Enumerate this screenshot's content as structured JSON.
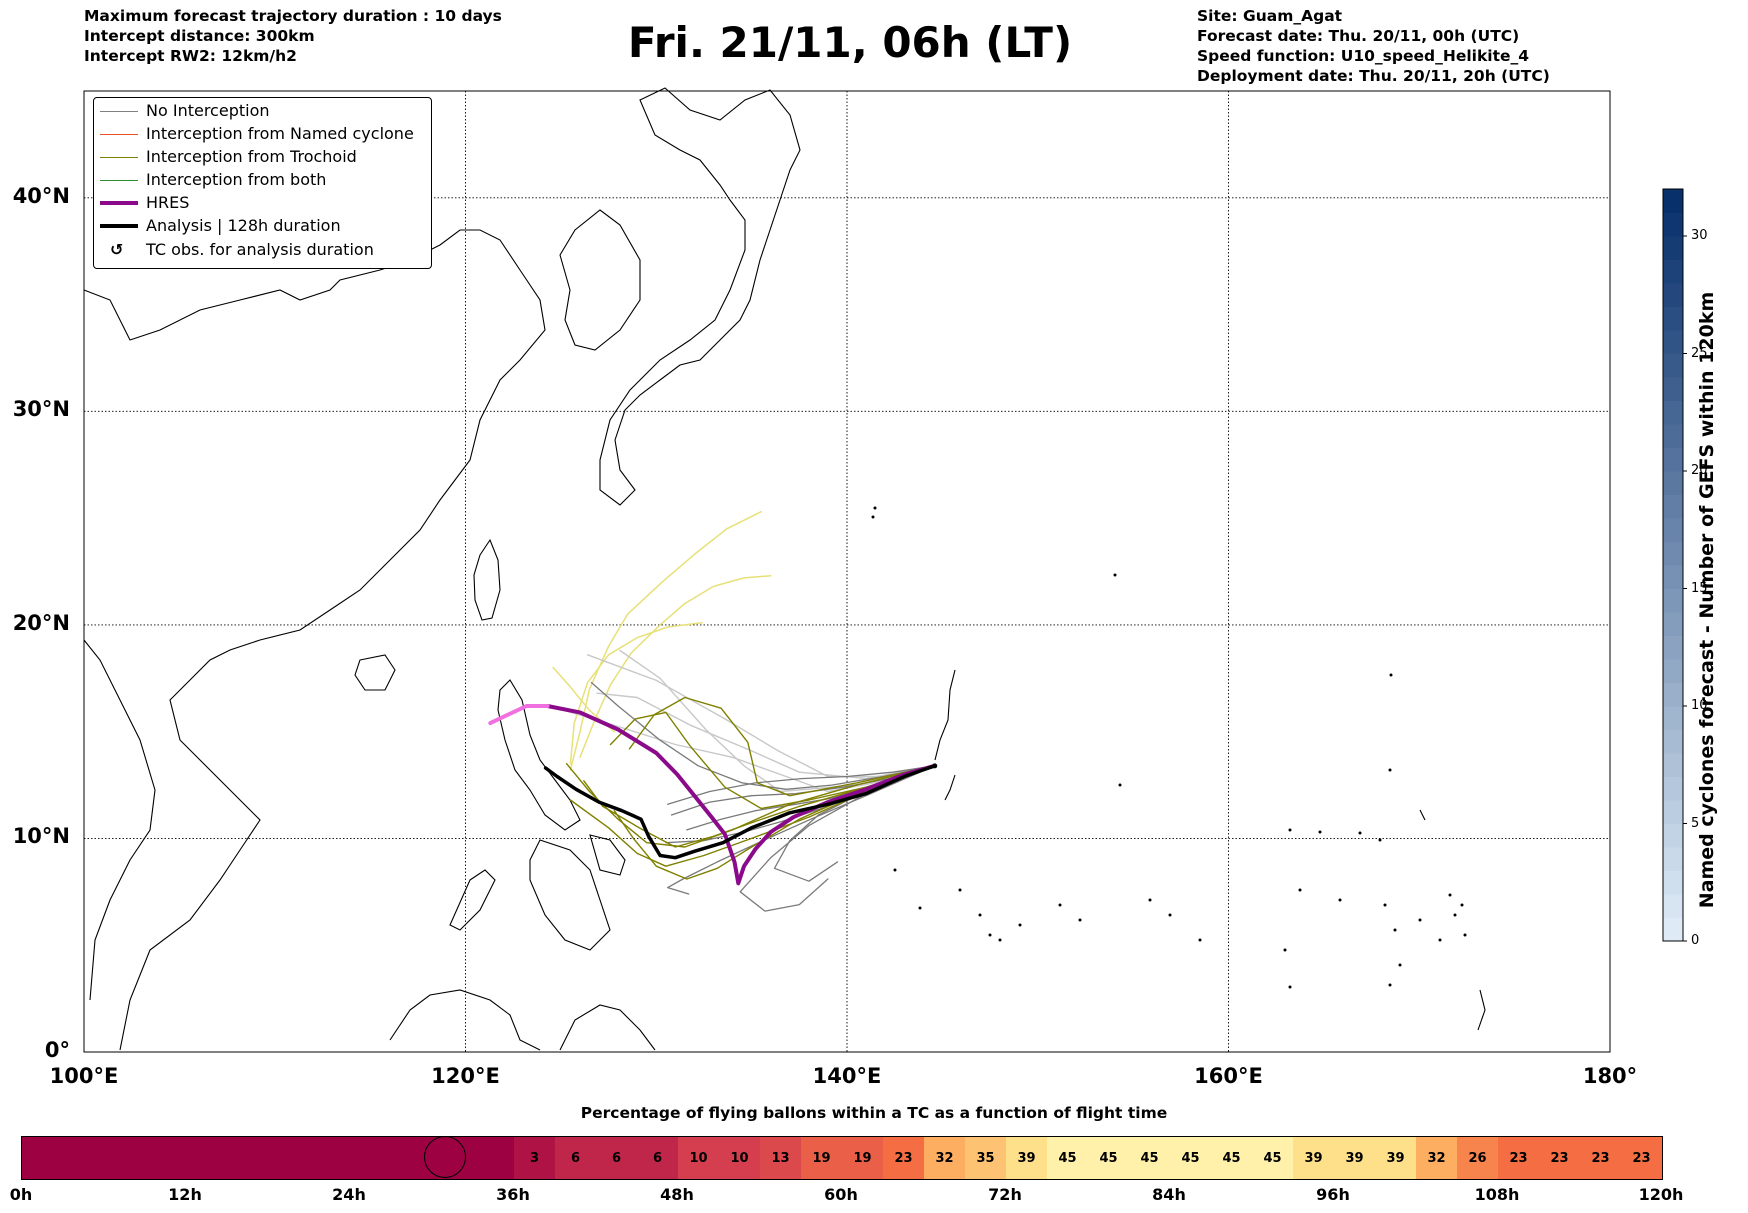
{
  "header_left": [
    "Maximum forecast trajectory duration : 10 days",
    "Intercept distance: 300km",
    "Intercept RW2: 12km/h2"
  ],
  "title": "Fri. 21/11, 06h (LT)",
  "header_right": [
    "Site: Guam_Agat",
    "Forecast date: Thu. 20/11, 00h (UTC)",
    "Speed function: U10_speed_Helikite_4",
    "Deployment date: Thu. 20/11, 20h (UTC)"
  ],
  "legend": [
    {
      "label": "No Interception",
      "color": "#808080",
      "kind": "thin"
    },
    {
      "label": "Interception from Named cyclone",
      "color": "#e8502a",
      "kind": "thin"
    },
    {
      "label": "Interception from Trochoid",
      "color": "#808000",
      "kind": "thin"
    },
    {
      "label": "Interception from both",
      "color": "#2e8b2e",
      "kind": "thin"
    },
    {
      "label": "HRES",
      "color": "#8b0a8b",
      "kind": "thick"
    },
    {
      "label": "Analysis | 128h duration",
      "color": "#000000",
      "kind": "thick"
    },
    {
      "label": "TC obs. for analysis duration",
      "color": "#000000",
      "kind": "symbol",
      "symbol": "↺"
    }
  ],
  "map": {
    "lon_range": [
      100,
      180
    ],
    "lat_range": [
      0,
      45
    ],
    "lon_ticks": [
      {
        "value": 100,
        "label": "100°E"
      },
      {
        "value": 120,
        "label": "120°E"
      },
      {
        "value": 140,
        "label": "140°E"
      },
      {
        "value": 160,
        "label": "160°E"
      },
      {
        "value": 180,
        "label": "180°"
      }
    ],
    "lat_ticks": [
      {
        "value": 0,
        "label": "0°"
      },
      {
        "value": 10,
        "label": "10°N"
      },
      {
        "value": 20,
        "label": "20°N"
      },
      {
        "value": 30,
        "label": "30°N"
      },
      {
        "value": 40,
        "label": "40°N"
      }
    ],
    "launch_site": {
      "lon": 144.6,
      "lat": 13.4
    },
    "analysis_track": [
      [
        144.6,
        13.4
      ],
      [
        143,
        12.9
      ],
      [
        141,
        12.1
      ],
      [
        139,
        11.6
      ],
      [
        137,
        11.2
      ],
      [
        135,
        10.5
      ],
      [
        133.5,
        9.8
      ],
      [
        132,
        9.4
      ],
      [
        131,
        9.1
      ],
      [
        130.2,
        9.2
      ],
      [
        129.6,
        10.1
      ],
      [
        129.2,
        10.9
      ],
      [
        128.2,
        11.3
      ],
      [
        127,
        11.7
      ],
      [
        125.8,
        12.3
      ],
      [
        124.8,
        12.9
      ],
      [
        124.2,
        13.3
      ]
    ],
    "hres_track": [
      [
        144.6,
        13.4
      ],
      [
        143,
        13
      ],
      [
        141,
        12.3
      ],
      [
        139,
        11.7
      ],
      [
        137.2,
        11
      ],
      [
        136,
        10.3
      ],
      [
        135.2,
        9.5
      ],
      [
        134.6,
        8.7
      ],
      [
        134.3,
        7.9
      ],
      [
        134.1,
        8.9
      ],
      [
        133.6,
        10.2
      ],
      [
        132.9,
        11
      ],
      [
        132,
        12
      ],
      [
        131.1,
        13
      ],
      [
        130,
        14
      ],
      [
        128,
        15.1
      ],
      [
        126,
        15.9
      ],
      [
        124.3,
        16.2
      ],
      [
        123.2,
        16.2
      ],
      [
        122,
        15.7
      ],
      [
        121.3,
        15.4
      ]
    ],
    "hres_recent_from_lon": 124.8,
    "trochoid_tracks": [
      [
        [
          144.6,
          13.4
        ],
        [
          141,
          12.2
        ],
        [
          138,
          11
        ],
        [
          135,
          10
        ],
        [
          132.5,
          9.2
        ],
        [
          130.5,
          8.7
        ],
        [
          129,
          9.3
        ],
        [
          127.5,
          10.5
        ],
        [
          125.5,
          11.8
        ]
      ],
      [
        [
          144.6,
          13.4
        ],
        [
          140.5,
          12.5
        ],
        [
          137,
          11.6
        ],
        [
          134,
          10.4
        ],
        [
          131.5,
          9.6
        ],
        [
          129.5,
          9.8
        ],
        [
          128,
          10.9
        ],
        [
          126.5,
          12.2
        ],
        [
          125.3,
          13.5
        ]
      ],
      [
        [
          144.6,
          13.4
        ],
        [
          141,
          12.3
        ],
        [
          137.5,
          10.9
        ],
        [
          135,
          9.6
        ],
        [
          133.2,
          8.6
        ],
        [
          131.6,
          8.1
        ],
        [
          130,
          8.7
        ],
        [
          128.8,
          10
        ],
        [
          127.8,
          11.3
        ]
      ],
      [
        [
          144.6,
          13.4
        ],
        [
          140.5,
          12.6
        ],
        [
          137,
          12
        ],
        [
          135.3,
          12.6
        ],
        [
          134.8,
          14.5
        ],
        [
          133.4,
          16.1
        ],
        [
          131.5,
          16.6
        ],
        [
          129.9,
          15.8
        ],
        [
          128.6,
          14.2
        ]
      ],
      [
        [
          144.6,
          13.4
        ],
        [
          141.5,
          12.5
        ],
        [
          138,
          11.8
        ],
        [
          135.5,
          11.4
        ],
        [
          133.6,
          12.4
        ],
        [
          131.8,
          14.3
        ],
        [
          130.5,
          15.9
        ],
        [
          128.9,
          15.6
        ],
        [
          127.6,
          14.4
        ]
      ],
      [
        [
          144.6,
          13.4
        ],
        [
          141,
          12.4
        ],
        [
          137.5,
          11.5
        ],
        [
          135.2,
          10.8
        ],
        [
          133,
          10.1
        ],
        [
          131,
          9.6
        ],
        [
          129.3,
          10.4
        ],
        [
          127.2,
          11.5
        ],
        [
          126.2,
          12.7
        ]
      ]
    ],
    "yellow_tracks": [
      [
        [
          125.5,
          13.2
        ],
        [
          126,
          15
        ],
        [
          126.5,
          17
        ],
        [
          127.5,
          19
        ],
        [
          128.5,
          20.5
        ],
        [
          130.3,
          22
        ],
        [
          132,
          23.3
        ],
        [
          133.7,
          24.5
        ],
        [
          135.5,
          25.3
        ]
      ],
      [
        [
          126,
          13.8
        ],
        [
          126.8,
          15.6
        ],
        [
          127.6,
          17.2
        ],
        [
          128.7,
          18.7
        ],
        [
          130.2,
          20
        ],
        [
          131.5,
          21
        ],
        [
          133,
          21.8
        ],
        [
          134.6,
          22.2
        ],
        [
          136,
          22.3
        ]
      ],
      [
        [
          125.5,
          13.5
        ],
        [
          125.7,
          15.4
        ],
        [
          126.4,
          17.3
        ],
        [
          127.5,
          18.6
        ],
        [
          129,
          19.4
        ],
        [
          130.6,
          19.9
        ],
        [
          132.4,
          20.1
        ]
      ],
      [
        [
          127.8,
          15
        ],
        [
          126.5,
          16
        ],
        [
          125.4,
          17.2
        ],
        [
          124.6,
          18
        ]
      ]
    ],
    "light_gray_tracks": [
      [
        [
          144.6,
          13.4
        ],
        [
          140.5,
          12.5
        ],
        [
          136.5,
          12.2
        ],
        [
          134.6,
          13.4
        ],
        [
          132.6,
          15.1
        ],
        [
          130.2,
          17.5
        ],
        [
          128.1,
          18.8
        ]
      ],
      [
        [
          144.6,
          13.4
        ],
        [
          141,
          12.8
        ],
        [
          137.5,
          13.1
        ],
        [
          135,
          14.1
        ],
        [
          131.8,
          15.3
        ],
        [
          129,
          16.6
        ],
        [
          126.9,
          16.8
        ]
      ],
      [
        [
          144.6,
          13.4
        ],
        [
          142,
          12.7
        ],
        [
          139,
          12.2
        ],
        [
          136.5,
          13
        ],
        [
          134,
          13.8
        ],
        [
          131,
          14.4
        ],
        [
          127.8,
          15.3
        ],
        [
          124.8,
          16.1
        ]
      ],
      [
        [
          144.6,
          13.4
        ],
        [
          142,
          12.9
        ],
        [
          139,
          12.9
        ],
        [
          136.4,
          14.1
        ],
        [
          133.6,
          15.6
        ],
        [
          130,
          17.4
        ],
        [
          126.4,
          18.6
        ]
      ]
    ],
    "gray_tracks": [
      [
        [
          144.6,
          13.4
        ],
        [
          141,
          12.1
        ],
        [
          138,
          10.6
        ],
        [
          136,
          9.1
        ],
        [
          134.4,
          7.5
        ],
        [
          135.7,
          6.6
        ],
        [
          137.5,
          6.9
        ],
        [
          139,
          8.1
        ]
      ],
      [
        [
          144.6,
          13.4
        ],
        [
          141.2,
          12.3
        ],
        [
          138.5,
          11.1
        ],
        [
          137,
          9.9
        ],
        [
          136.2,
          8.6
        ],
        [
          138,
          8
        ],
        [
          139.5,
          8.9
        ]
      ],
      [
        [
          144.6,
          13.4
        ],
        [
          141.8,
          12.6
        ],
        [
          139.3,
          11.9
        ],
        [
          137.3,
          11.6
        ],
        [
          135.2,
          11.3
        ],
        [
          133.4,
          10.9
        ],
        [
          131.6,
          10.4
        ]
      ],
      [
        [
          144.6,
          13.4
        ],
        [
          142.2,
          12.8
        ],
        [
          139.8,
          12.4
        ],
        [
          137.3,
          12.1
        ],
        [
          135,
          12
        ],
        [
          132.8,
          11.7
        ],
        [
          130.8,
          11.1
        ]
      ],
      [
        [
          144.6,
          13.4
        ],
        [
          142.4,
          13.1
        ],
        [
          140,
          12.9
        ],
        [
          137.6,
          12.8
        ],
        [
          135.2,
          12.6
        ],
        [
          132.8,
          12.2
        ],
        [
          130.6,
          11.6
        ]
      ],
      [
        [
          144.6,
          13.4
        ],
        [
          141.6,
          12.4
        ],
        [
          139,
          11.5
        ],
        [
          136.6,
          10.8
        ],
        [
          134.6,
          10.3
        ],
        [
          132.5,
          9.9
        ],
        [
          130.5,
          9.8
        ]
      ],
      [
        [
          144.6,
          13.4
        ],
        [
          141,
          12
        ],
        [
          138.1,
          10.9
        ],
        [
          135.6,
          9.9
        ],
        [
          133.2,
          8.9
        ],
        [
          131.4,
          8.1
        ],
        [
          130.6,
          7.7
        ],
        [
          131.7,
          7.4
        ]
      ],
      [
        [
          144.6,
          13.4
        ],
        [
          141.9,
          12.9
        ],
        [
          139.2,
          12.5
        ],
        [
          136.8,
          12.3
        ],
        [
          134.5,
          12.6
        ],
        [
          132.2,
          13.4
        ],
        [
          130.2,
          14.6
        ],
        [
          128,
          16.2
        ],
        [
          126.6,
          17.3
        ]
      ]
    ]
  },
  "colorbar": {
    "title": "Named cyclones forecast - Number of GEFS within 120km",
    "min": 0,
    "max": 32,
    "ticks": [
      0,
      5,
      10,
      15,
      20,
      25,
      30
    ],
    "tick_labels": [
      "0",
      "5",
      "10",
      "15",
      "20",
      "25",
      "30"
    ],
    "color_low": "#deebf7",
    "color_high": "#08306b"
  },
  "flight_bar": {
    "title": "Percentage of flying ballons within a TC as a function of flight time",
    "hours_total": 120,
    "segment_hours": 3,
    "values": [
      0,
      0,
      0,
      0,
      0,
      0,
      0,
      0,
      0,
      0,
      0,
      0,
      3,
      6,
      6,
      6,
      10,
      10,
      13,
      19,
      19,
      23,
      32,
      35,
      39,
      45,
      45,
      45,
      45,
      45,
      45,
      39,
      39,
      39,
      32,
      26,
      23,
      23,
      23,
      23
    ],
    "ticks": [
      {
        "h": 0,
        "label": "0h"
      },
      {
        "h": 12,
        "label": "12h"
      },
      {
        "h": 24,
        "label": "24h"
      },
      {
        "h": 36,
        "label": "36h"
      },
      {
        "h": 48,
        "label": "48h"
      },
      {
        "h": 60,
        "label": "60h"
      },
      {
        "h": 72,
        "label": "72h"
      },
      {
        "h": 84,
        "label": "84h"
      },
      {
        "h": 96,
        "label": "96h"
      },
      {
        "h": 108,
        "label": "108h"
      },
      {
        "h": 120,
        "label": "120h"
      }
    ],
    "current_hour": 31
  }
}
